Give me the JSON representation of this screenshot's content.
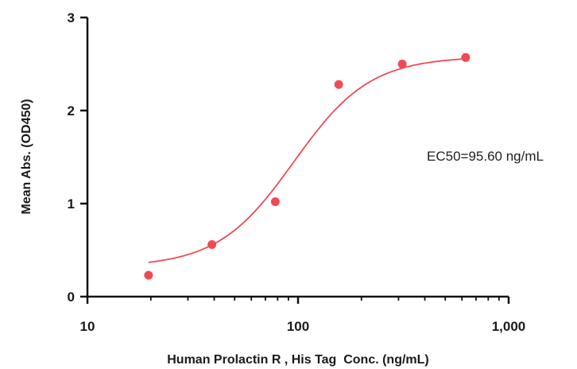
{
  "chart_data": {
    "type": "scatter",
    "xscale": "log",
    "xlim": [
      10,
      1000
    ],
    "ylim": [
      0,
      3
    ],
    "xticks": [
      10,
      100,
      1000
    ],
    "xtick_labels": [
      "10",
      "100",
      "1,000"
    ],
    "yticks": [
      0,
      1,
      2,
      3
    ],
    "ytick_labels": [
      "0",
      "1",
      "2",
      "3"
    ],
    "xlabel": "Human Prolactin R , His Tag  Conc. (ng/mL)",
    "ylabel": "Mean Abs. (OD450)",
    "grid": false,
    "annotation": "EC50=95.60 ng/mL",
    "series": [
      {
        "points": [
          {
            "x": 19.5,
            "y": 0.23
          },
          {
            "x": 39,
            "y": 0.56
          },
          {
            "x": 78,
            "y": 1.02
          },
          {
            "x": 156,
            "y": 2.28
          },
          {
            "x": 312.5,
            "y": 2.5
          },
          {
            "x": 625,
            "y": 2.57
          }
        ],
        "fit": {
          "model": "4PL",
          "bottom": 0.32,
          "top": 2.58,
          "ec50": 95.6,
          "hill": 2.4,
          "x_range": [
            19.5,
            625
          ]
        },
        "color": "#f04a55"
      }
    ]
  }
}
